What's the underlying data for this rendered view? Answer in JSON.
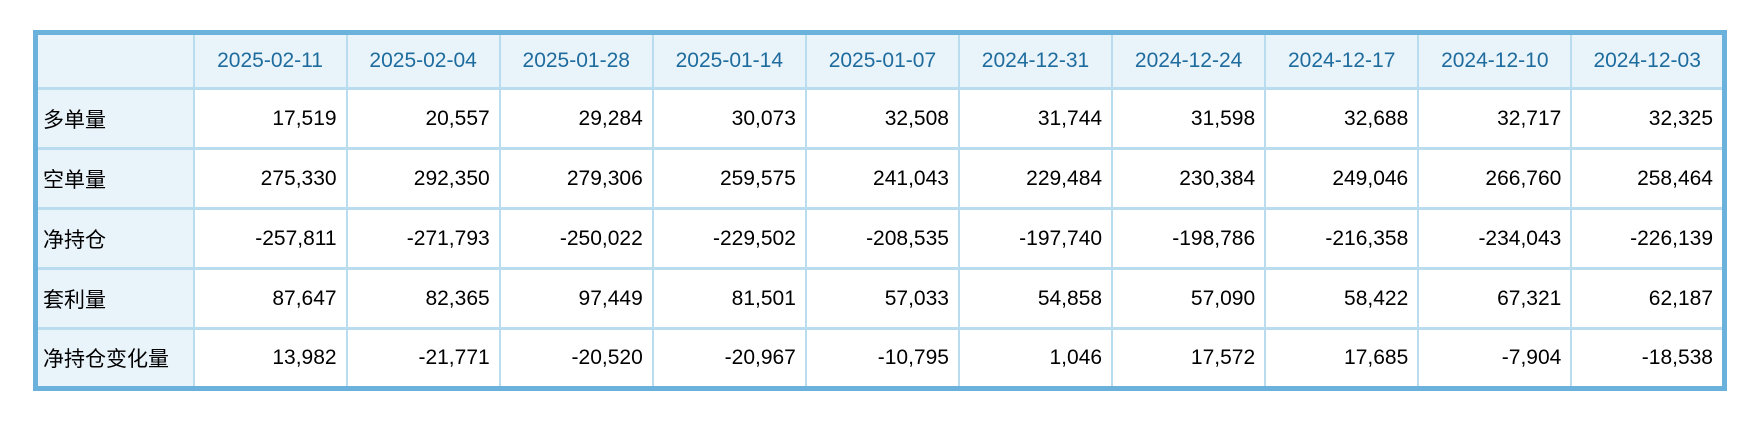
{
  "colors": {
    "outer_border": "#6ab2db",
    "grid_line": "#b9ddef",
    "header_background": "#e9f3fa",
    "header_text": "#1e6c9e",
    "body_text": "#000000",
    "cell_background": "#ffffff"
  },
  "chart_data": {
    "type": "table",
    "corner_label": "",
    "columns": [
      "2025-02-11",
      "2025-02-04",
      "2025-01-28",
      "2025-01-14",
      "2025-01-07",
      "2024-12-31",
      "2024-12-24",
      "2024-12-17",
      "2024-12-10",
      "2024-12-03"
    ],
    "rows": [
      {
        "label": "多单量",
        "values": [
          "17,519",
          "20,557",
          "29,284",
          "30,073",
          "32,508",
          "31,744",
          "31,598",
          "32,688",
          "32,717",
          "32,325"
        ]
      },
      {
        "label": "空单量",
        "values": [
          "275,330",
          "292,350",
          "279,306",
          "259,575",
          "241,043",
          "229,484",
          "230,384",
          "249,046",
          "266,760",
          "258,464"
        ]
      },
      {
        "label": "净持仓",
        "values": [
          "-257,811",
          "-271,793",
          "-250,022",
          "-229,502",
          "-208,535",
          "-197,740",
          "-198,786",
          "-216,358",
          "-234,043",
          "-226,139"
        ]
      },
      {
        "label": "套利量",
        "values": [
          "87,647",
          "82,365",
          "97,449",
          "81,501",
          "57,033",
          "54,858",
          "57,090",
          "58,422",
          "67,321",
          "62,187"
        ]
      },
      {
        "label": "净持仓变化量",
        "values": [
          "13,982",
          "-21,771",
          "-20,520",
          "-20,967",
          "-10,795",
          "1,046",
          "17,572",
          "17,685",
          "-7,904",
          "-18,538"
        ]
      }
    ]
  }
}
